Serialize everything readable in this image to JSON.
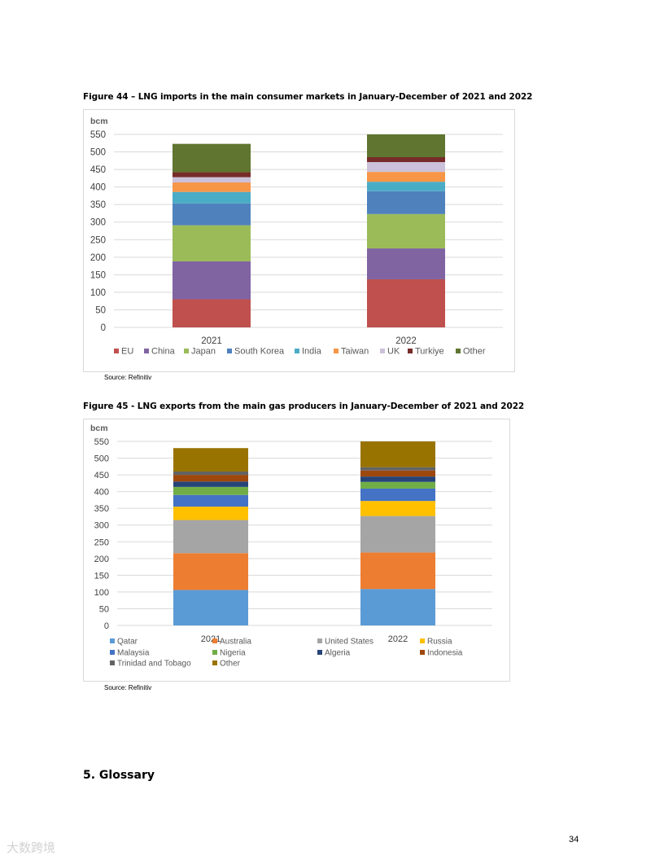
{
  "figure44": {
    "title": "Figure 44 – LNG imports in the main consumer markets in January-December of 2021 and 2022",
    "source": "Source: Refinitiv"
  },
  "figure45": {
    "title": "Figure 45 - LNG exports from the main gas producers in January-December of 2021 and 2022",
    "source": "Source: Refinitiv"
  },
  "section_heading": "5. Glossary",
  "page_number": "34",
  "watermark": "大数跨境",
  "chart_data": [
    {
      "type": "bar",
      "stacked": true,
      "ylabel": "bcm",
      "ylim": [
        0,
        550
      ],
      "yticks": [
        0,
        50,
        100,
        150,
        200,
        250,
        300,
        350,
        400,
        450,
        500,
        550
      ],
      "categories": [
        "2021",
        "2022"
      ],
      "grid": true,
      "legend_position": "bottom",
      "series": [
        {
          "name": "EU",
          "color": "#c0504d",
          "values": [
            80,
            137
          ]
        },
        {
          "name": "China",
          "color": "#8064a2",
          "values": [
            108,
            88
          ]
        },
        {
          "name": "Japan",
          "color": "#9bbb59",
          "values": [
            103,
            98
          ]
        },
        {
          "name": "South Korea",
          "color": "#4f81bd",
          "values": [
            62,
            65
          ]
        },
        {
          "name": "India",
          "color": "#4bacc6",
          "values": [
            33,
            27
          ]
        },
        {
          "name": "Taiwan",
          "color": "#f79646",
          "values": [
            27,
            28
          ]
        },
        {
          "name": "UK",
          "color": "#ccc1da",
          "values": [
            15,
            28
          ]
        },
        {
          "name": "Turkiye",
          "color": "#772c2a",
          "values": [
            14,
            14
          ]
        },
        {
          "name": "Other",
          "color": "#5f7530",
          "values": [
            81,
            65
          ]
        }
      ]
    },
    {
      "type": "bar",
      "stacked": true,
      "ylabel": "bcm",
      "ylim": [
        0,
        550
      ],
      "yticks": [
        0,
        50,
        100,
        150,
        200,
        250,
        300,
        350,
        400,
        450,
        500,
        550
      ],
      "categories": [
        "2021",
        "2022"
      ],
      "grid": true,
      "legend_position": "bottom",
      "series": [
        {
          "name": "Qatar",
          "color": "#5b9bd5",
          "values": [
            106,
            109
          ]
        },
        {
          "name": "Australia",
          "color": "#ed7d31",
          "values": [
            110,
            109
          ]
        },
        {
          "name": "United States",
          "color": "#a5a5a5",
          "values": [
            99,
            109
          ]
        },
        {
          "name": "Russia",
          "color": "#ffc000",
          "values": [
            40,
            45
          ]
        },
        {
          "name": "Malaysia",
          "color": "#4472c4",
          "values": [
            35,
            37
          ]
        },
        {
          "name": "Nigeria",
          "color": "#70ad47",
          "values": [
            24,
            20
          ]
        },
        {
          "name": "Algeria",
          "color": "#264478",
          "values": [
            16,
            16
          ]
        },
        {
          "name": "Indonesia",
          "color": "#9e480e",
          "values": [
            20,
            18
          ]
        },
        {
          "name": "Trinidad and Tobago",
          "color": "#636363",
          "values": [
            10,
            10
          ]
        },
        {
          "name": "Other",
          "color": "#997300",
          "values": [
            70,
            77
          ]
        }
      ]
    }
  ]
}
